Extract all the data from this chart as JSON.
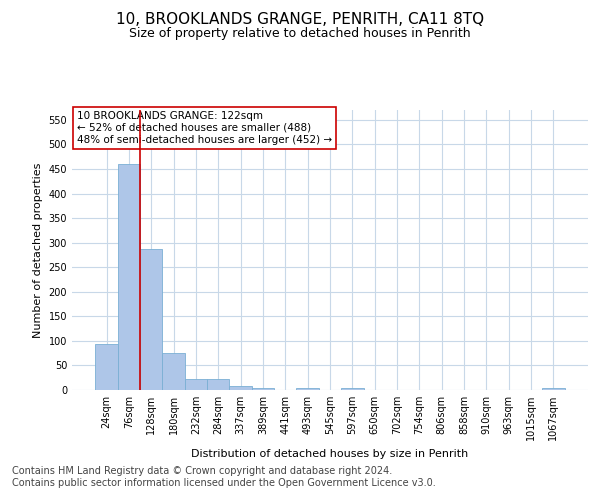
{
  "title_line1": "10, BROOKLANDS GRANGE, PENRITH, CA11 8TQ",
  "title_line2": "Size of property relative to detached houses in Penrith",
  "xlabel": "Distribution of detached houses by size in Penrith",
  "ylabel": "Number of detached properties",
  "bar_color": "#aec6e8",
  "bar_edge_color": "#7aafd4",
  "background_color": "#ffffff",
  "grid_color": "#c8d8e8",
  "annotation_box_color": "#cc0000",
  "annotation_text": "10 BROOKLANDS GRANGE: 122sqm\n← 52% of detached houses are smaller (488)\n48% of semi-detached houses are larger (452) →",
  "property_line_color": "#cc0000",
  "categories": [
    "24sqm",
    "76sqm",
    "128sqm",
    "180sqm",
    "232sqm",
    "284sqm",
    "337sqm",
    "389sqm",
    "441sqm",
    "493sqm",
    "545sqm",
    "597sqm",
    "650sqm",
    "702sqm",
    "754sqm",
    "806sqm",
    "858sqm",
    "910sqm",
    "963sqm",
    "1015sqm",
    "1067sqm"
  ],
  "values": [
    93,
    460,
    288,
    75,
    22,
    22,
    8,
    5,
    0,
    5,
    0,
    5,
    0,
    0,
    0,
    0,
    0,
    0,
    0,
    0,
    5
  ],
  "ylim": [
    0,
    570
  ],
  "yticks": [
    0,
    50,
    100,
    150,
    200,
    250,
    300,
    350,
    400,
    450,
    500,
    550
  ],
  "footer": "Contains HM Land Registry data © Crown copyright and database right 2024.\nContains public sector information licensed under the Open Government Licence v3.0.",
  "title_fontsize": 11,
  "subtitle_fontsize": 9,
  "footer_fontsize": 7,
  "axis_label_fontsize": 8,
  "tick_fontsize": 7,
  "annotation_fontsize": 7.5
}
